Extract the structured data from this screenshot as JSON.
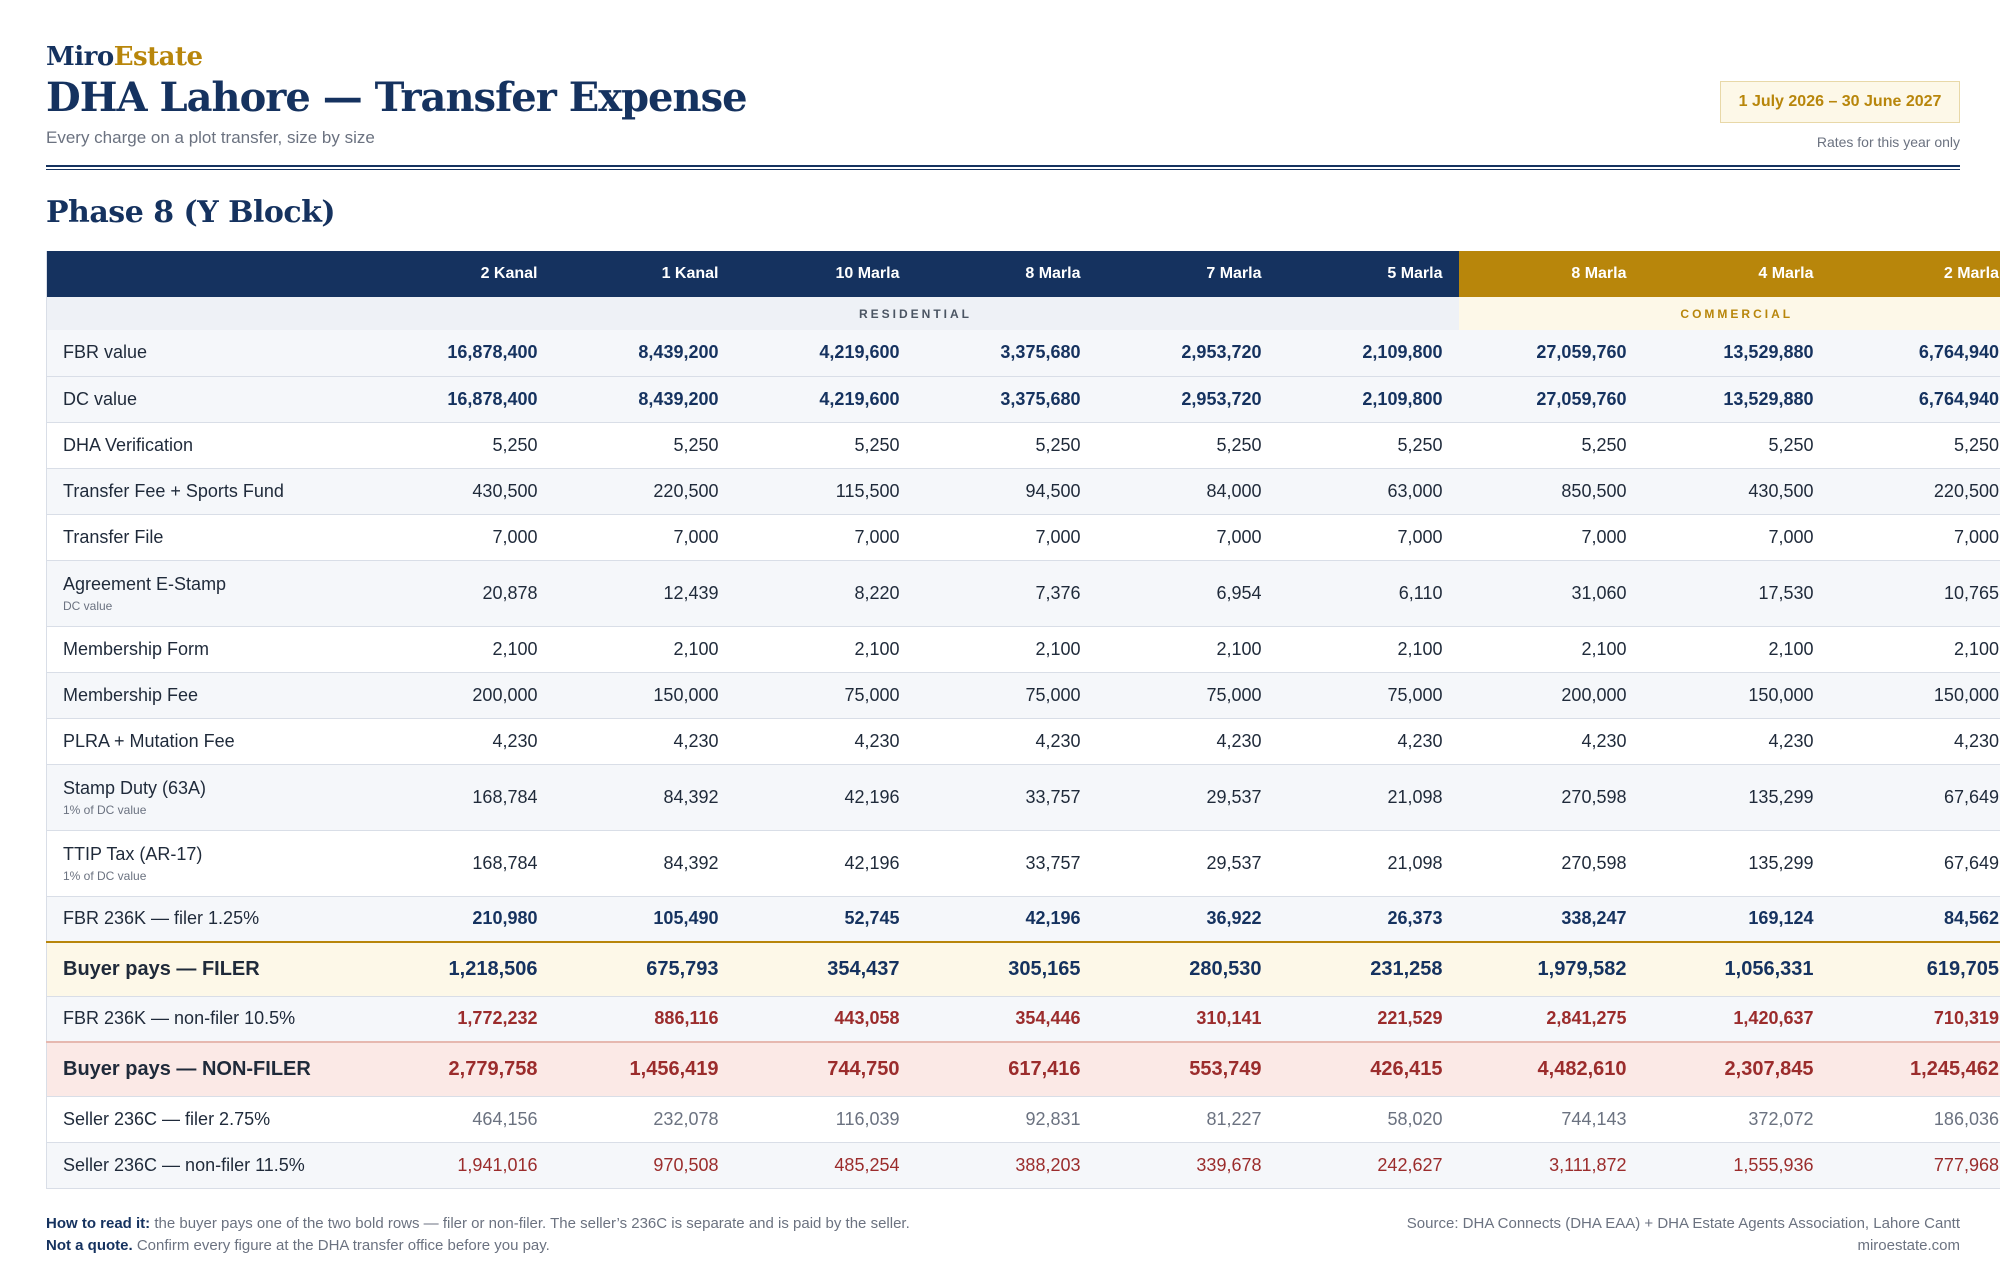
{
  "brand": {
    "part1": "Miro",
    "part2": "Estate"
  },
  "title": "DHA Lahore — Transfer Expense",
  "subtitle": "Every charge on a plot transfer, size by size",
  "period": "1 July 2026 – 30 June 2027",
  "period_note": "Rates for this year only",
  "phase": "Phase 8 (Y Block)",
  "columns": [
    "2 Kanal",
    "1 Kanal",
    "10 Marla",
    "8 Marla",
    "7 Marla",
    "5 Marla",
    "8 Marla",
    "4 Marla",
    "2 Marla"
  ],
  "groups": {
    "residential": "RESIDENTIAL",
    "commercial": "COMMERCIAL"
  },
  "rows": [
    {
      "label": "FBR value",
      "values": [
        "16,878,400",
        "8,439,200",
        "4,219,600",
        "3,375,680",
        "2,953,720",
        "2,109,800",
        "27,059,760",
        "13,529,880",
        "6,764,940"
      ]
    },
    {
      "label": "DC value",
      "values": [
        "16,878,400",
        "8,439,200",
        "4,219,600",
        "3,375,680",
        "2,953,720",
        "2,109,800",
        "27,059,760",
        "13,529,880",
        "6,764,940"
      ]
    },
    {
      "label": "DHA Verification",
      "values": [
        "5,250",
        "5,250",
        "5,250",
        "5,250",
        "5,250",
        "5,250",
        "5,250",
        "5,250",
        "5,250"
      ]
    },
    {
      "label": "Transfer Fee + Sports Fund",
      "values": [
        "430,500",
        "220,500",
        "115,500",
        "94,500",
        "84,000",
        "63,000",
        "850,500",
        "430,500",
        "220,500"
      ]
    },
    {
      "label": "Transfer File",
      "values": [
        "7,000",
        "7,000",
        "7,000",
        "7,000",
        "7,000",
        "7,000",
        "7,000",
        "7,000",
        "7,000"
      ]
    },
    {
      "label": "Agreement E-Stamp",
      "note": "DC value",
      "values": [
        "20,878",
        "12,439",
        "8,220",
        "7,376",
        "6,954",
        "6,110",
        "31,060",
        "17,530",
        "10,765"
      ]
    },
    {
      "label": "Membership Form",
      "values": [
        "2,100",
        "2,100",
        "2,100",
        "2,100",
        "2,100",
        "2,100",
        "2,100",
        "2,100",
        "2,100"
      ]
    },
    {
      "label": "Membership Fee",
      "values": [
        "200,000",
        "150,000",
        "75,000",
        "75,000",
        "75,000",
        "75,000",
        "200,000",
        "150,000",
        "150,000"
      ]
    },
    {
      "label": "PLRA + Mutation Fee",
      "values": [
        "4,230",
        "4,230",
        "4,230",
        "4,230",
        "4,230",
        "4,230",
        "4,230",
        "4,230",
        "4,230"
      ]
    },
    {
      "label": "Stamp Duty (63A)",
      "note": "1% of DC value",
      "values": [
        "168,784",
        "84,392",
        "42,196",
        "33,757",
        "29,537",
        "21,098",
        "270,598",
        "135,299",
        "67,649"
      ]
    },
    {
      "label": "TTIP Tax (AR-17)",
      "note": "1% of DC value",
      "values": [
        "168,784",
        "84,392",
        "42,196",
        "33,757",
        "29,537",
        "21,098",
        "270,598",
        "135,299",
        "67,649"
      ]
    },
    {
      "label": "FBR 236K — filer 1.25%",
      "values": [
        "210,980",
        "105,490",
        "52,745",
        "42,196",
        "36,922",
        "26,373",
        "338,247",
        "169,124",
        "84,562"
      ]
    },
    {
      "label": "Buyer pays — FILER",
      "values": [
        "1,218,506",
        "675,793",
        "354,437",
        "305,165",
        "280,530",
        "231,258",
        "1,979,582",
        "1,056,331",
        "619,705"
      ]
    },
    {
      "label": "FBR 236K — non-filer 10.5%",
      "values": [
        "1,772,232",
        "886,116",
        "443,058",
        "354,446",
        "310,141",
        "221,529",
        "2,841,275",
        "1,420,637",
        "710,319"
      ]
    },
    {
      "label": "Buyer pays — NON-FILER",
      "values": [
        "2,779,758",
        "1,456,419",
        "744,750",
        "617,416",
        "553,749",
        "426,415",
        "4,482,610",
        "2,307,845",
        "1,245,462"
      ]
    },
    {
      "label": "Seller 236C — filer 2.75%",
      "values": [
        "464,156",
        "232,078",
        "116,039",
        "92,831",
        "81,227",
        "58,020",
        "744,143",
        "372,072",
        "186,036"
      ]
    },
    {
      "label": "Seller 236C — non-filer 11.5%",
      "values": [
        "1,941,016",
        "970,508",
        "485,254",
        "388,203",
        "339,678",
        "242,627",
        "3,111,872",
        "1,555,936",
        "777,968"
      ]
    }
  ],
  "footer": {
    "how_label": "How to read it:",
    "how_text": " the buyer pays one of the two bold rows — filer or non-filer. The seller’s 236C is separate and is paid by the seller.",
    "quote_label": "Not a quote.",
    "quote_text": " Confirm every figure at the DHA transfer office before you pay.",
    "source": "Source: DHA Connects (DHA EAA) + DHA Estate Agents Association, Lahore Cantt",
    "site": "miroestate.com"
  },
  "colors": {
    "navy": "#15325f",
    "gold": "#b8860b",
    "red": "#9b2c2c"
  }
}
